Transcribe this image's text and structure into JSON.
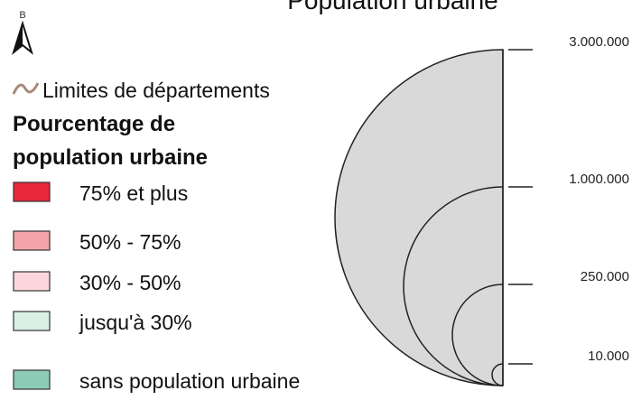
{
  "title": "Population urbaine",
  "north_label": "B",
  "boundary_label": "Limites de départements",
  "choropleth": {
    "title_lines": [
      "Pourcentage de",
      "population urbaine"
    ],
    "classes": [
      {
        "label": "75% et plus",
        "color": "#e8283c"
      },
      {
        "label": "50% - 75%",
        "color": "#f4a3a8"
      },
      {
        "label": "30% - 50%",
        "color": "#fcd6dc"
      },
      {
        "label": "jusqu'à 30%",
        "color": "#d9f0e4"
      },
      {
        "label": "sans population urbaine",
        "color": "#8ccbb5"
      }
    ]
  },
  "proportional_symbols": {
    "labels": [
      "3.000.000",
      "1.000.000",
      "250.000",
      "10.000"
    ]
  }
}
